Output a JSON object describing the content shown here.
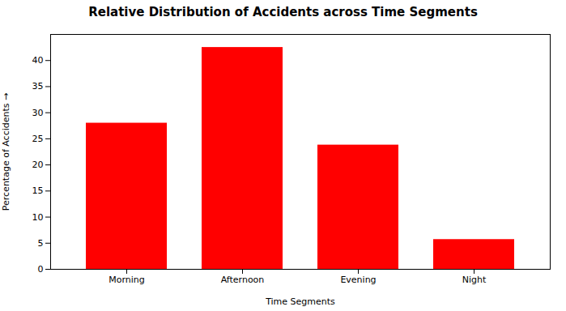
{
  "chart_data": {
    "type": "bar",
    "title": "Relative Distribution of Accidents across Time Segments",
    "xlabel": "Time Segments",
    "ylabel": "Percentage of Accidents",
    "categories": [
      "Morning",
      "Afternoon",
      "Evening",
      "Night"
    ],
    "values": [
      28.0,
      42.5,
      23.8,
      5.7
    ],
    "color": "#ff0000",
    "ylim": [
      0,
      45
    ],
    "yticks": [
      0,
      5,
      10,
      15,
      20,
      25,
      30,
      35,
      40
    ],
    "grid": false
  }
}
